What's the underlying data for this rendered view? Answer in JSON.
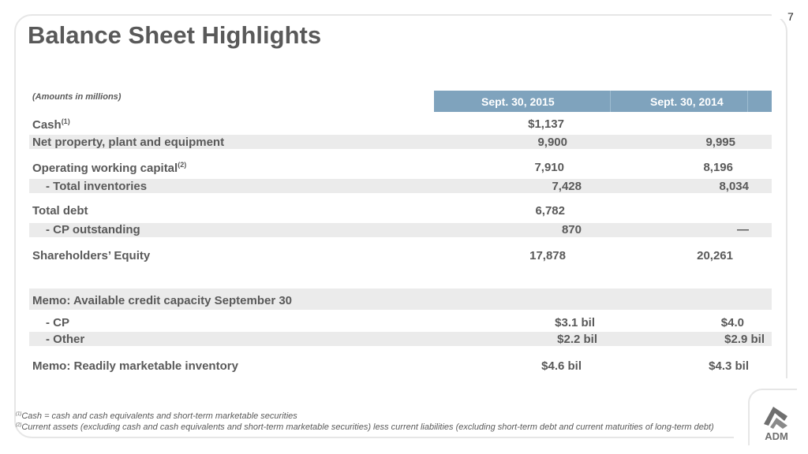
{
  "page_number": "7",
  "title": "Balance Sheet Highlights",
  "units_note": "(Amounts in millions)",
  "columns": [
    "Sept. 30, 2015",
    "Sept. 30, 2014"
  ],
  "rows": [
    {
      "label": "Cash",
      "sup": "(1)",
      "v2015": "$1,137",
      "v2014": ""
    },
    {
      "label": "Net property, plant and equipment",
      "sup": "",
      "v2015": "9,900",
      "v2014": "9,995"
    },
    {
      "label": "Operating working capital",
      "sup": "(2)",
      "v2015": "7,910",
      "v2014": "8,196"
    },
    {
      "label": "- Total inventories",
      "sup": "",
      "v2015": "7,428",
      "v2014": "8,034"
    },
    {
      "label": "Total debt",
      "sup": "",
      "v2015": "6,782",
      "v2014": ""
    },
    {
      "label": "- CP outstanding",
      "sup": "",
      "v2015": "870",
      "v2014": "—"
    },
    {
      "label": "Shareholders’ Equity",
      "sup": "",
      "v2015": "17,878",
      "v2014": "20,261"
    }
  ],
  "memo": [
    {
      "label": "Memo: Available credit capacity September 30",
      "v2015": "",
      "v2014": ""
    },
    {
      "label": "- CP",
      "v2015": "$3.1 bil",
      "v2014": "$4.0"
    },
    {
      "label": "- Other",
      "v2015": "$2.2 bil",
      "v2014": "$2.9 bil"
    },
    {
      "label": "Memo: Readily marketable inventory",
      "v2015": "$4.6 bil",
      "v2014": "$4.3 bil"
    }
  ],
  "footnotes": [
    {
      "marker": "(1)",
      "text": "Cash = cash and cash equivalents and short-term marketable securities"
    },
    {
      "marker": "(2)",
      "text": "Current assets (excluding cash and cash equivalents and short-term marketable securities) less current liabilities (excluding short-term debt and current maturities of long-term debt)"
    }
  ],
  "logo_text": "ADM",
  "colors": {
    "header": "#7fa3bd",
    "band": "#ebebeb",
    "text": "#595959"
  }
}
